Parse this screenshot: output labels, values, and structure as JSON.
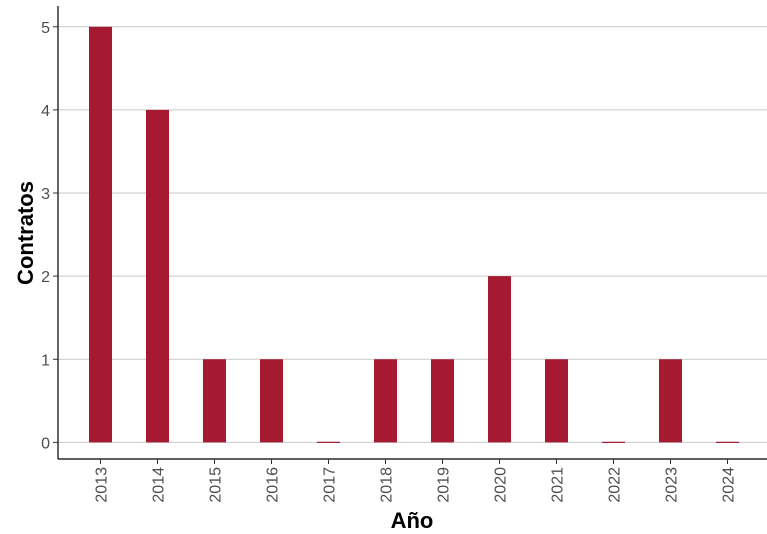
{
  "chart_data": {
    "type": "bar",
    "title": "",
    "xlabel": "Año",
    "ylabel": "Contratos",
    "categories": [
      "2013",
      "2014",
      "2015",
      "2016",
      "2017",
      "2018",
      "2019",
      "2020",
      "2021",
      "2022",
      "2023",
      "2024"
    ],
    "values": [
      5,
      4,
      1,
      1,
      0,
      1,
      1,
      2,
      1,
      0,
      1,
      0
    ],
    "yticks": [
      "0",
      "1",
      "2",
      "3",
      "4",
      "5"
    ],
    "ylim": [
      -0.2,
      5.25
    ],
    "grid": "horizontal",
    "legend": "none",
    "bar_color": "#a51931"
  }
}
